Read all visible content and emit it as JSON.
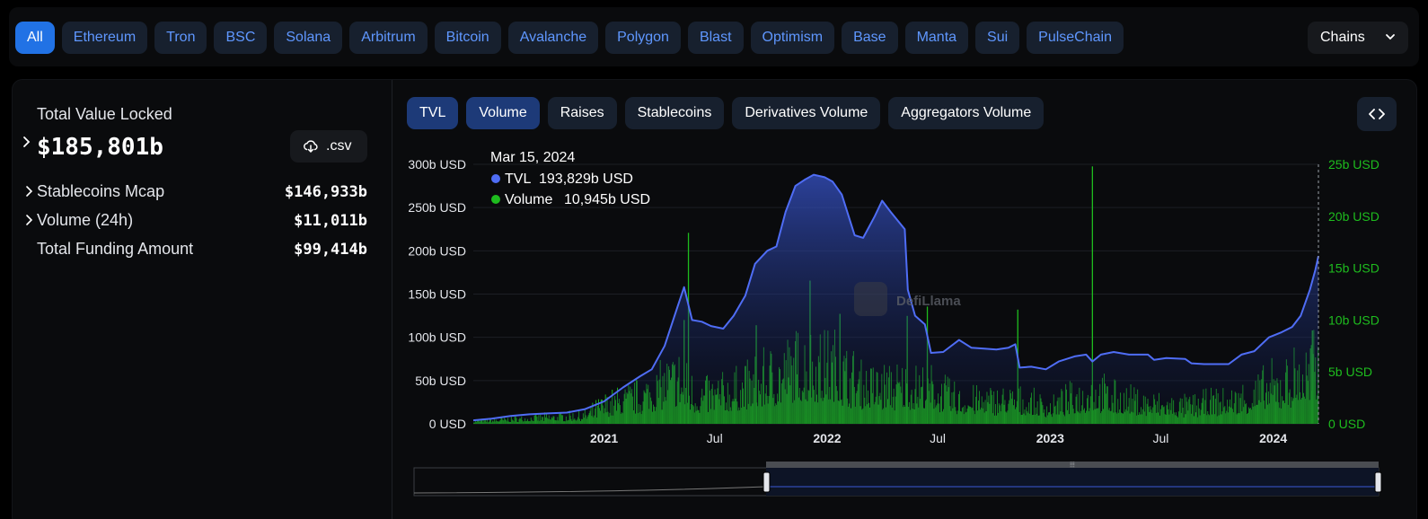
{
  "chains": {
    "items": [
      "All",
      "Ethereum",
      "Tron",
      "BSC",
      "Solana",
      "Arbitrum",
      "Bitcoin",
      "Avalanche",
      "Polygon",
      "Blast",
      "Optimism",
      "Base",
      "Manta",
      "Sui",
      "PulseChain"
    ],
    "active_index": 0,
    "select_label": "Chains",
    "select_icon": "chevron-down-icon"
  },
  "summary": {
    "tvl_label": "Total Value Locked",
    "tvl_value": "$185,801b",
    "csv_label": ".csv",
    "csv_icon": "download-cloud-icon",
    "rows": [
      {
        "label": "Stablecoins Mcap",
        "value": "$146,933b",
        "expandable": true
      },
      {
        "label": "Volume (24h)",
        "value": "$11,011b",
        "expandable": true
      },
      {
        "label": "Total Funding Amount",
        "value": "$99,414b",
        "expandable": false
      }
    ]
  },
  "metrics": {
    "tabs": [
      "TVL",
      "Volume",
      "Raises",
      "Stablecoins",
      "Derivatives Volume",
      "Aggregators Volume"
    ],
    "active": [
      "TVL",
      "Volume"
    ],
    "embed_icon": "code-brackets-icon"
  },
  "tooltip": {
    "date": "Mar 15, 2024",
    "items": [
      {
        "name": "TVL",
        "value": "193,829b USD",
        "color": "#4f6df5"
      },
      {
        "name": "Volume",
        "value": "10,945b USD",
        "color": "#1ebc1e"
      }
    ]
  },
  "watermark": "DefiLlama",
  "chart_data": {
    "type": "line+bar",
    "x_ticks": [
      "2021",
      "Jul",
      "2022",
      "Jul",
      "2023",
      "Jul",
      "2024"
    ],
    "x_ticks_bold": [
      "2021",
      "2022",
      "2023",
      "2024"
    ],
    "left_axis": {
      "ticks": [
        "0 USD",
        "50b USD",
        "100b USD",
        "150b USD",
        "200b USD",
        "250b USD",
        "300b USD"
      ],
      "range": [
        0,
        300
      ],
      "unit": "b USD"
    },
    "right_axis": {
      "ticks": [
        "0 USD",
        "5b USD",
        "10b USD",
        "15b USD",
        "20b USD",
        "25b USD"
      ],
      "range": [
        0,
        25
      ],
      "unit": "b USD",
      "color": "#1ebc1e"
    },
    "x_range": [
      "2020-06-01",
      "2024-03-15"
    ],
    "series": [
      {
        "name": "TVL",
        "type": "area",
        "axis": "left",
        "color": "#4f6df5",
        "points": [
          [
            "2020-06-01",
            4
          ],
          [
            "2020-07-01",
            6
          ],
          [
            "2020-08-01",
            9
          ],
          [
            "2020-09-01",
            11
          ],
          [
            "2020-10-01",
            12
          ],
          [
            "2020-11-01",
            13
          ],
          [
            "2020-12-01",
            17
          ],
          [
            "2021-01-01",
            26
          ],
          [
            "2021-02-01",
            42
          ],
          [
            "2021-03-01",
            55
          ],
          [
            "2021-03-20",
            63
          ],
          [
            "2021-04-10",
            90
          ],
          [
            "2021-05-01",
            135
          ],
          [
            "2021-05-12",
            158
          ],
          [
            "2021-05-25",
            120
          ],
          [
            "2021-06-10",
            118
          ],
          [
            "2021-06-25",
            113
          ],
          [
            "2021-07-15",
            110
          ],
          [
            "2021-08-01",
            125
          ],
          [
            "2021-08-20",
            148
          ],
          [
            "2021-09-05",
            185
          ],
          [
            "2021-09-25",
            200
          ],
          [
            "2021-10-10",
            205
          ],
          [
            "2021-10-25",
            245
          ],
          [
            "2021-11-10",
            275
          ],
          [
            "2021-11-25",
            282
          ],
          [
            "2021-12-10",
            288
          ],
          [
            "2021-12-28",
            285
          ],
          [
            "2022-01-10",
            280
          ],
          [
            "2022-01-25",
            265
          ],
          [
            "2022-02-15",
            218
          ],
          [
            "2022-03-01",
            215
          ],
          [
            "2022-03-20",
            240
          ],
          [
            "2022-04-01",
            258
          ],
          [
            "2022-04-15",
            245
          ],
          [
            "2022-04-30",
            232
          ],
          [
            "2022-05-08",
            225
          ],
          [
            "2022-05-13",
            155
          ],
          [
            "2022-05-25",
            125
          ],
          [
            "2022-06-10",
            115
          ],
          [
            "2022-06-20",
            82
          ],
          [
            "2022-07-10",
            83
          ],
          [
            "2022-08-05",
            97
          ],
          [
            "2022-08-25",
            88
          ],
          [
            "2022-09-15",
            87
          ],
          [
            "2022-10-05",
            86
          ],
          [
            "2022-10-25",
            88
          ],
          [
            "2022-11-05",
            92
          ],
          [
            "2022-11-12",
            65
          ],
          [
            "2022-12-01",
            66
          ],
          [
            "2022-12-25",
            63
          ],
          [
            "2023-01-15",
            72
          ],
          [
            "2023-02-10",
            78
          ],
          [
            "2023-03-01",
            80
          ],
          [
            "2023-03-11",
            72
          ],
          [
            "2023-03-25",
            80
          ],
          [
            "2023-04-15",
            83
          ],
          [
            "2023-05-10",
            80
          ],
          [
            "2023-06-10",
            80
          ],
          [
            "2023-06-20",
            74
          ],
          [
            "2023-07-10",
            76
          ],
          [
            "2023-08-10",
            75
          ],
          [
            "2023-08-20",
            70
          ],
          [
            "2023-09-10",
            69
          ],
          [
            "2023-10-01",
            69
          ],
          [
            "2023-10-20",
            69
          ],
          [
            "2023-11-10",
            80
          ],
          [
            "2023-12-01",
            84
          ],
          [
            "2023-12-25",
            100
          ],
          [
            "2024-01-15",
            106
          ],
          [
            "2024-02-01",
            112
          ],
          [
            "2024-02-15",
            125
          ],
          [
            "2024-03-01",
            155
          ],
          [
            "2024-03-10",
            178
          ],
          [
            "2024-03-15",
            194
          ]
        ]
      },
      {
        "name": "Volume",
        "type": "bar",
        "axis": "right",
        "color": "#1ebc1e",
        "envelope": [
          [
            "2020-06-01",
            0.3
          ],
          [
            "2020-09-01",
            0.6
          ],
          [
            "2020-12-01",
            0.9
          ],
          [
            "2021-01-01",
            2
          ],
          [
            "2021-03-01",
            3
          ],
          [
            "2021-05-01",
            5
          ],
          [
            "2021-06-01",
            3
          ],
          [
            "2021-08-01",
            3.5
          ],
          [
            "2021-10-01",
            5
          ],
          [
            "2021-12-01",
            6.5
          ],
          [
            "2022-01-15",
            6
          ],
          [
            "2022-03-01",
            4
          ],
          [
            "2022-05-01",
            4
          ],
          [
            "2022-06-15",
            4
          ],
          [
            "2022-08-01",
            2.5
          ],
          [
            "2022-11-01",
            2.5
          ],
          [
            "2023-01-01",
            1.8
          ],
          [
            "2023-03-10",
            3.5
          ],
          [
            "2023-05-01",
            2.5
          ],
          [
            "2023-08-01",
            1.8
          ],
          [
            "2023-11-01",
            2.5
          ],
          [
            "2024-01-01",
            4
          ],
          [
            "2024-03-15",
            6
          ]
        ],
        "spikes": [
          [
            "2021-05-19",
            18.4
          ],
          [
            "2021-05-12",
            10
          ],
          [
            "2021-09-07",
            9.5
          ],
          [
            "2021-12-04",
            13.8
          ],
          [
            "2022-01-22",
            10.6
          ],
          [
            "2022-05-12",
            10.4
          ],
          [
            "2022-06-14",
            11.3
          ],
          [
            "2022-11-09",
            11
          ],
          [
            "2023-03-11",
            24.8
          ],
          [
            "2024-03-05",
            9
          ]
        ]
      }
    ]
  }
}
